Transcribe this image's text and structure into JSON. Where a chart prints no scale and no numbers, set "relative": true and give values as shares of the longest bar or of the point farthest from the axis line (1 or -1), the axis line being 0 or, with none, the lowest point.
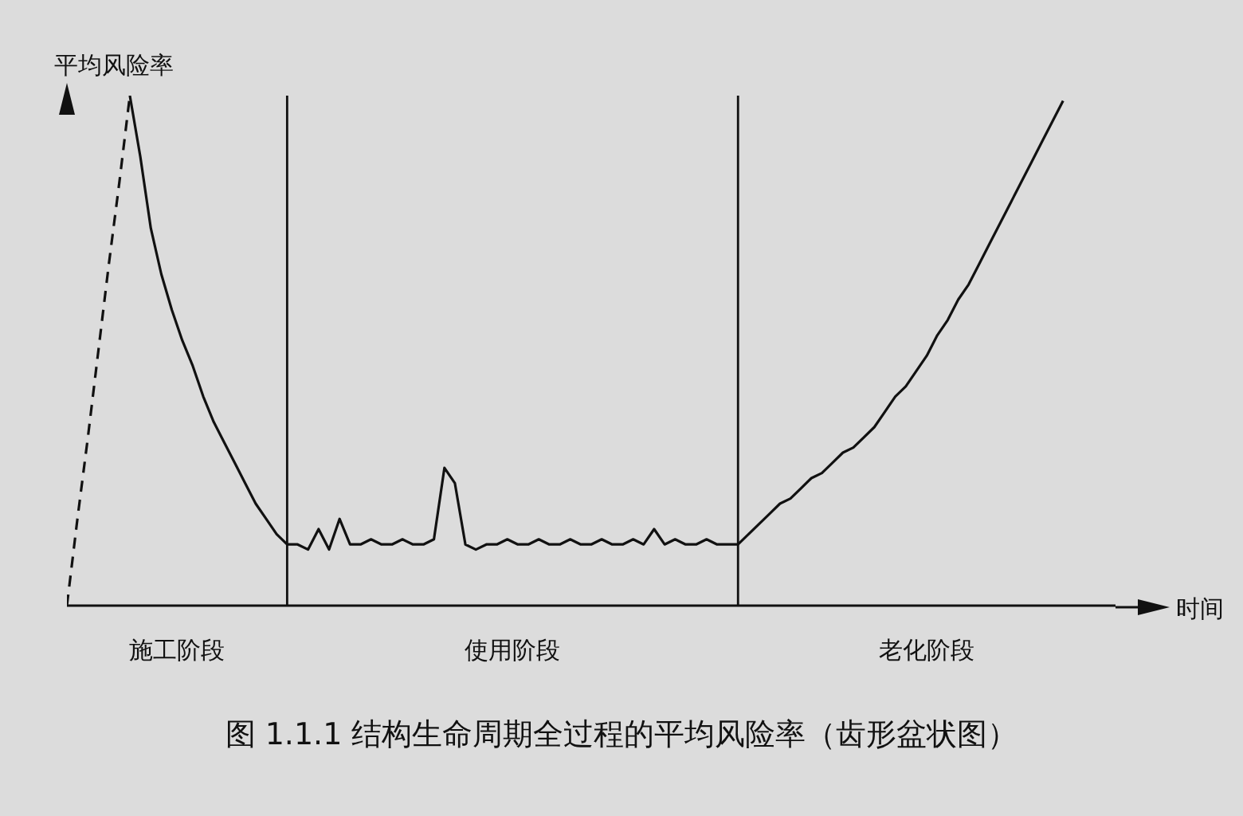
{
  "chart_data": {
    "type": "line",
    "relative": true,
    "title": "图 1.1.1  结构生命周期全过程的平均风险率（齿形盆状图）",
    "ylabel": "平均风险率",
    "xlabel": "时间",
    "marker": "none",
    "categories": [
      null,
      null,
      null,
      null,
      null,
      null,
      null,
      null,
      null,
      null,
      null,
      null,
      null,
      null,
      null,
      null,
      null,
      null,
      null,
      null,
      null,
      null,
      null,
      null,
      null,
      null,
      null,
      null,
      null,
      null,
      null,
      null,
      null,
      null,
      null,
      null,
      null,
      null,
      null,
      null,
      null,
      null,
      null,
      null,
      null,
      null,
      null,
      null,
      null,
      null,
      null,
      null,
      null,
      null,
      null,
      null,
      null,
      null,
      null,
      null,
      null,
      null,
      null,
      null,
      null,
      null,
      null,
      null,
      null,
      null,
      null,
      null,
      null,
      null,
      null,
      null,
      null,
      null,
      null,
      null,
      null,
      null,
      null,
      null,
      null,
      null,
      null,
      null,
      null,
      null,
      null,
      null,
      null,
      null,
      null,
      null,
      null,
      null,
      null,
      null,
      null
    ],
    "series": [
      {
        "color": "#111111",
        "line_style": "dashed",
        "values": [
          0,
          0.17,
          0.33,
          0.5,
          0.67,
          0.83,
          1,
          null,
          null,
          null,
          null,
          null,
          null,
          null,
          null,
          null,
          null,
          null,
          null,
          null,
          null,
          null,
          null,
          null,
          null,
          null,
          null,
          null,
          null,
          null,
          null,
          null,
          null,
          null,
          null,
          null,
          null,
          null,
          null,
          null,
          null,
          null,
          null,
          null,
          null,
          null,
          null,
          null,
          null,
          null,
          null,
          null,
          null,
          null,
          null,
          null,
          null,
          null,
          null,
          null,
          null,
          null,
          null,
          null,
          null,
          null,
          null,
          null,
          null,
          null,
          null,
          null,
          null,
          null,
          null,
          null,
          null,
          null,
          null,
          null,
          null,
          null,
          null,
          null,
          null,
          null,
          null,
          null,
          null,
          null,
          null,
          null,
          null,
          null,
          null,
          null,
          null,
          null,
          null,
          null,
          null
        ]
      },
      {
        "color": "#111111",
        "line_style": "solid",
        "values": [
          null,
          null,
          null,
          null,
          null,
          null,
          1,
          0.88,
          0.74,
          0.65,
          0.58,
          0.52,
          0.47,
          0.41,
          0.36,
          0.32,
          0.28,
          0.24,
          0.2,
          0.17,
          0.14,
          0.12,
          0.12,
          0.11,
          0.15,
          0.11,
          0.17,
          0.12,
          0.12,
          0.13,
          0.12,
          0.12,
          0.13,
          0.12,
          0.12,
          0.13,
          0.27,
          0.24,
          0.12,
          0.11,
          0.12,
          0.12,
          0.13,
          0.12,
          0.12,
          0.13,
          0.12,
          0.12,
          0.13,
          0.12,
          0.12,
          0.13,
          0.12,
          0.12,
          0.13,
          0.12,
          0.15,
          0.12,
          0.13,
          0.12,
          0.12,
          0.13,
          0.12,
          0.12,
          0.12,
          0.14,
          0.16,
          0.18,
          0.2,
          0.21,
          0.23,
          0.25,
          0.26,
          0.28,
          0.3,
          0.31,
          0.33,
          0.35,
          0.38,
          0.41,
          0.43,
          0.46,
          0.49,
          0.53,
          0.56,
          0.6,
          0.63,
          0.67,
          0.71,
          0.75,
          0.79,
          0.83,
          0.87,
          0.91,
          0.95,
          0.99,
          null,
          null,
          null,
          null,
          null
        ]
      }
    ],
    "annotations": [
      "施工阶段",
      "使用阶段",
      "老化阶段"
    ]
  }
}
